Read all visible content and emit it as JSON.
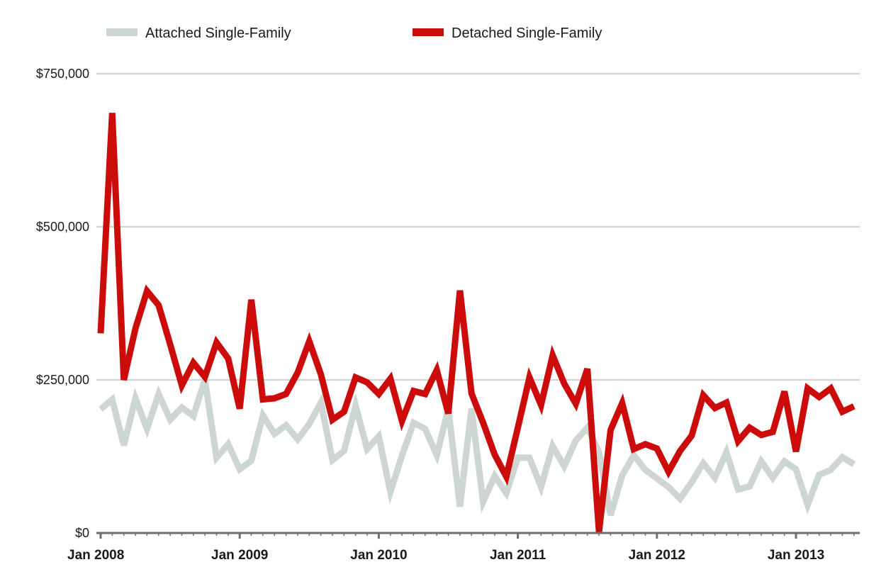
{
  "chart_data": {
    "type": "line",
    "title": "",
    "xlabel": "",
    "ylabel": "",
    "x_start": "Jan 2008",
    "x_end": "Jun 2013",
    "x_interval": "monthly",
    "x_ticks": [
      "Jan 2008",
      "Jan 2009",
      "Jan 2010",
      "Jan 2011",
      "Jan 2012",
      "Jan 2013"
    ],
    "y_ticks": [
      "$0",
      "$250,000",
      "$500,000",
      "$750,000"
    ],
    "ylim": [
      0,
      750000
    ],
    "grid": true,
    "legend_position": "top-left",
    "series": [
      {
        "name": "Attached Single-Family",
        "color": "#cdd6d3",
        "values": [
          202000,
          218000,
          143000,
          220000,
          170000,
          227000,
          185000,
          205000,
          191000,
          250000,
          123000,
          145000,
          104000,
          118000,
          192000,
          162000,
          176000,
          153000,
          178000,
          213000,
          119000,
          134000,
          208000,
          137000,
          158000,
          67000,
          126000,
          180000,
          170000,
          127000,
          203000,
          43000,
          203000,
          51000,
          93000,
          65000,
          123000,
          123000,
          75000,
          142000,
          109000,
          151000,
          172000,
          132000,
          29000,
          94000,
          127000,
          103000,
          89000,
          75000,
          56000,
          83000,
          114000,
          90000,
          132000,
          71000,
          76000,
          117000,
          90000,
          117000,
          104000,
          46000,
          95000,
          103000,
          124000,
          112000
        ]
      },
      {
        "name": "Detached Single-Family",
        "color": "#cc0b0b",
        "values": [
          326000,
          686000,
          250000,
          334000,
          395000,
          372000,
          308000,
          241000,
          278000,
          255000,
          311000,
          285000,
          203000,
          381000,
          218000,
          220000,
          227000,
          262000,
          313000,
          259000,
          185000,
          198000,
          254000,
          246000,
          227000,
          252000,
          183000,
          232000,
          227000,
          266000,
          195000,
          396000,
          228000,
          180000,
          128000,
          92000,
          172000,
          254000,
          209000,
          290000,
          244000,
          211000,
          268000,
          2000,
          168000,
          212000,
          137000,
          145000,
          138000,
          100000,
          134000,
          159000,
          225000,
          204000,
          213000,
          150000,
          172000,
          160000,
          165000,
          231000,
          133000,
          236000,
          222000,
          236000,
          198000,
          207000
        ]
      }
    ]
  }
}
